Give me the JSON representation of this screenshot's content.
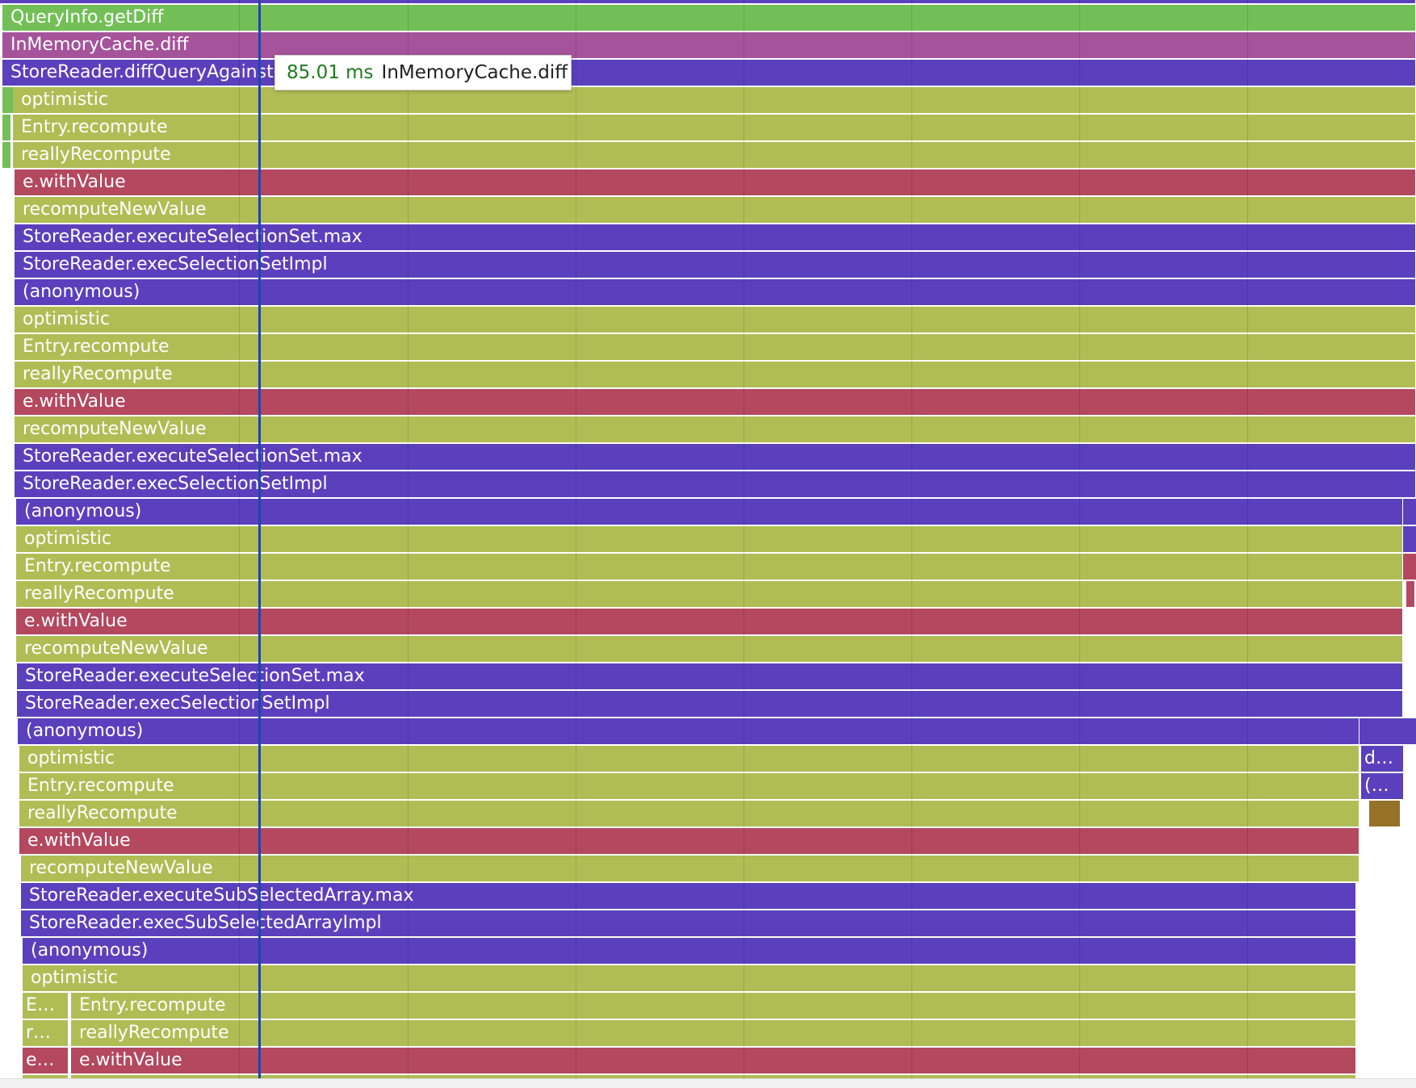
{
  "colors": {
    "green": "#73bf57",
    "magenta": "#a5539b",
    "purple": "#5b40bd",
    "olive": "#b0bd55",
    "red": "#b3485f",
    "brown": "#957228"
  },
  "tooltip": {
    "duration": "85.01 ms",
    "name": "InMemoryCache.diff"
  },
  "frames": [
    {
      "label": "QueryInfo.getDiff",
      "color": "green"
    },
    {
      "label": "InMemoryCache.diff",
      "color": "magenta"
    },
    {
      "label": "StoreReader.diffQueryAgainstStore",
      "color": "purple"
    },
    {
      "label": "optimistic",
      "color": "olive"
    },
    {
      "label": "Entry.recompute",
      "color": "olive"
    },
    {
      "label": "reallyRecompute",
      "color": "olive"
    },
    {
      "label": "e.withValue",
      "color": "red"
    },
    {
      "label": "recomputeNewValue",
      "color": "olive"
    },
    {
      "label": "StoreReader.executeSelectionSet.max",
      "color": "purple"
    },
    {
      "label": "StoreReader.execSelectionSetImpl",
      "color": "purple"
    },
    {
      "label": "(anonymous)",
      "color": "purple"
    },
    {
      "label": "optimistic",
      "color": "olive"
    },
    {
      "label": "Entry.recompute",
      "color": "olive"
    },
    {
      "label": "reallyRecompute",
      "color": "olive"
    },
    {
      "label": "e.withValue",
      "color": "red"
    },
    {
      "label": "recomputeNewValue",
      "color": "olive"
    },
    {
      "label": "StoreReader.executeSelectionSet.max",
      "color": "purple"
    },
    {
      "label": "StoreReader.execSelectionSetImpl",
      "color": "purple"
    },
    {
      "label": "(anonymous)",
      "color": "purple"
    },
    {
      "label": "optimistic",
      "color": "olive"
    },
    {
      "label": "Entry.recompute",
      "color": "olive"
    },
    {
      "label": "reallyRecompute",
      "color": "olive"
    },
    {
      "label": "e.withValue",
      "color": "red"
    },
    {
      "label": "recomputeNewValue",
      "color": "olive"
    },
    {
      "label": "StoreReader.executeSelectionSet.max",
      "color": "purple"
    },
    {
      "label": "StoreReader.execSelectionSetImpl",
      "color": "purple"
    },
    {
      "label": "(anonymous)",
      "color": "purple"
    },
    {
      "label": "optimistic",
      "color": "olive"
    },
    {
      "label": "Entry.recompute",
      "color": "olive"
    },
    {
      "label": "reallyRecompute",
      "color": "olive"
    },
    {
      "label": "e.withValue",
      "color": "red"
    },
    {
      "label": "recomputeNewValue",
      "color": "olive"
    },
    {
      "label": "StoreReader.executeSubSelectedArray.max",
      "color": "purple"
    },
    {
      "label": "StoreReader.execSubSelectedArrayImpl",
      "color": "purple"
    },
    {
      "label": "(anonymous)",
      "color": "purple"
    },
    {
      "label": "optimistic",
      "color": "olive"
    },
    {
      "label": "Entry.recompute",
      "color": "olive"
    },
    {
      "label": "reallyRecompute",
      "color": "olive"
    },
    {
      "label": "e.withValue",
      "color": "red"
    },
    {
      "label": "",
      "color": "olive"
    }
  ],
  "side_frames": [
    {
      "label": "d…",
      "color": "purple"
    },
    {
      "label": "(…",
      "color": "purple"
    },
    {
      "label": "",
      "color": "brown"
    },
    {
      "label": "E…",
      "color": "olive"
    },
    {
      "label": "r…",
      "color": "olive"
    },
    {
      "label": "e…",
      "color": "red"
    }
  ]
}
